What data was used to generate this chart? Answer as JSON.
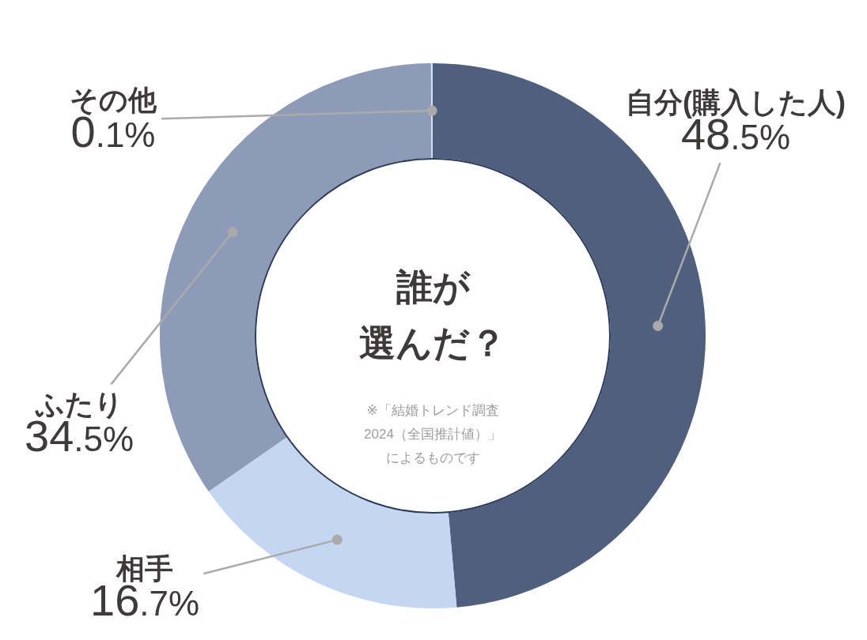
{
  "chart_data": {
    "type": "donut",
    "title": "誰が選んだ？",
    "categories": [
      "自分(購入した人)",
      "相手",
      "ふたり",
      "その他"
    ],
    "values": [
      48.5,
      16.7,
      34.5,
      0.1
    ],
    "colors": [
      "#515f7e",
      "#c5d6f3",
      "#8e9bb8",
      "#d3e0f6"
    ],
    "value_labels": [
      "48.5%",
      "16.7%",
      "34.5%",
      "0.1%"
    ],
    "annotations": [
      "※「結婚トレンド調査2024（全国推計値）」によるものです"
    ]
  }
}
